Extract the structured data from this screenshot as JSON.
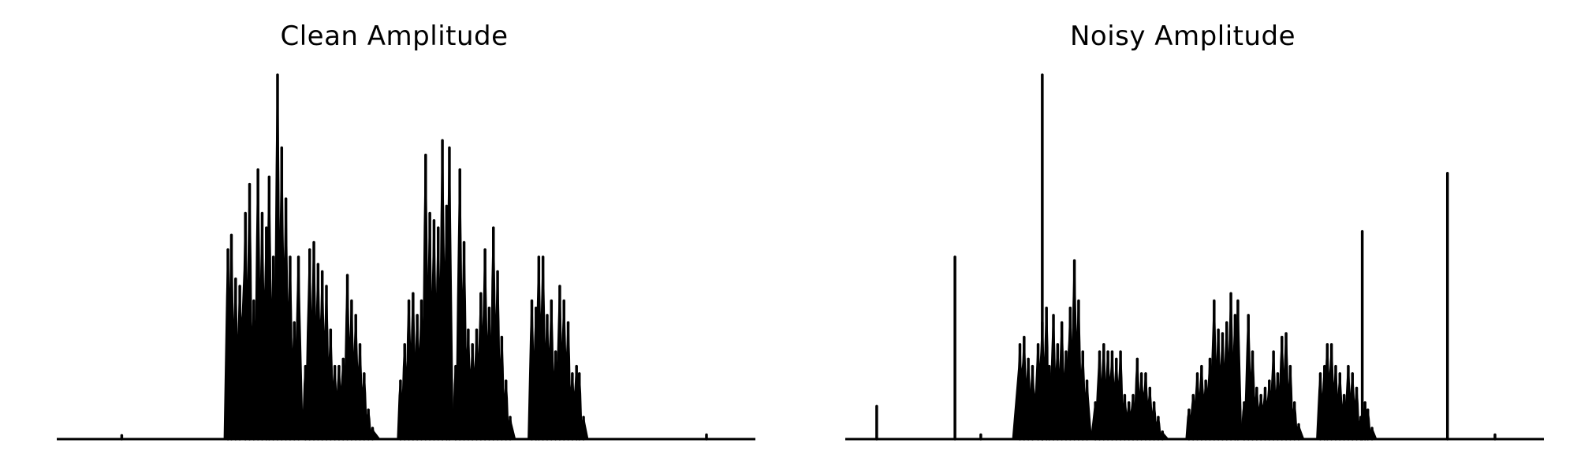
{
  "chart_data": [
    {
      "type": "area",
      "title": "Clean Amplitude",
      "xlabel": "",
      "ylabel": "",
      "xlim": [
        0,
        1
      ],
      "ylim": [
        0,
        1
      ],
      "axes_visible": false,
      "grid": false,
      "color": "#000000",
      "segments": [
        {
          "x_start": 0.24,
          "x_end": 0.352,
          "peaks": [
            [
              0.245,
              0.52
            ],
            [
              0.25,
              0.56
            ],
            [
              0.256,
              0.44
            ],
            [
              0.262,
              0.42
            ],
            [
              0.27,
              0.62
            ],
            [
              0.276,
              0.7
            ],
            [
              0.282,
              0.38
            ],
            [
              0.288,
              0.74
            ],
            [
              0.294,
              0.62
            ],
            [
              0.3,
              0.58
            ],
            [
              0.304,
              0.72
            ],
            [
              0.31,
              0.5
            ],
            [
              0.316,
              1.0
            ],
            [
              0.322,
              0.8
            ],
            [
              0.328,
              0.66
            ],
            [
              0.334,
              0.5
            ],
            [
              0.34,
              0.32
            ],
            [
              0.346,
              0.5
            ]
          ]
        },
        {
          "x_start": 0.352,
          "x_end": 0.462,
          "peaks": [
            [
              0.356,
              0.2
            ],
            [
              0.362,
              0.52
            ],
            [
              0.368,
              0.54
            ],
            [
              0.374,
              0.48
            ],
            [
              0.38,
              0.46
            ],
            [
              0.386,
              0.42
            ],
            [
              0.392,
              0.3
            ],
            [
              0.398,
              0.2
            ],
            [
              0.404,
              0.2
            ],
            [
              0.41,
              0.22
            ],
            [
              0.416,
              0.45
            ],
            [
              0.422,
              0.38
            ],
            [
              0.428,
              0.34
            ],
            [
              0.434,
              0.26
            ],
            [
              0.44,
              0.18
            ],
            [
              0.446,
              0.08
            ],
            [
              0.452,
              0.03
            ]
          ]
        },
        {
          "x_start": 0.488,
          "x_end": 0.567,
          "peaks": [
            [
              0.492,
              0.16
            ],
            [
              0.498,
              0.26
            ],
            [
              0.504,
              0.38
            ],
            [
              0.51,
              0.4
            ],
            [
              0.516,
              0.34
            ],
            [
              0.522,
              0.38
            ],
            [
              0.528,
              0.78
            ],
            [
              0.534,
              0.62
            ],
            [
              0.54,
              0.6
            ],
            [
              0.546,
              0.58
            ],
            [
              0.552,
              0.82
            ],
            [
              0.558,
              0.64
            ],
            [
              0.562,
              0.8
            ]
          ]
        },
        {
          "x_start": 0.567,
          "x_end": 0.656,
          "peaks": [
            [
              0.571,
              0.2
            ],
            [
              0.577,
              0.74
            ],
            [
              0.583,
              0.54
            ],
            [
              0.589,
              0.3
            ],
            [
              0.595,
              0.26
            ],
            [
              0.601,
              0.3
            ],
            [
              0.607,
              0.4
            ],
            [
              0.613,
              0.52
            ],
            [
              0.619,
              0.36
            ],
            [
              0.625,
              0.58
            ],
            [
              0.631,
              0.46
            ],
            [
              0.637,
              0.28
            ],
            [
              0.643,
              0.16
            ],
            [
              0.649,
              0.06
            ]
          ]
        },
        {
          "x_start": 0.675,
          "x_end": 0.76,
          "peaks": [
            [
              0.68,
              0.38
            ],
            [
              0.686,
              0.36
            ],
            [
              0.69,
              0.5
            ],
            [
              0.696,
              0.5
            ],
            [
              0.702,
              0.34
            ],
            [
              0.708,
              0.38
            ],
            [
              0.714,
              0.24
            ],
            [
              0.72,
              0.42
            ],
            [
              0.726,
              0.38
            ],
            [
              0.732,
              0.32
            ],
            [
              0.738,
              0.18
            ],
            [
              0.744,
              0.2
            ],
            [
              0.748,
              0.18
            ],
            [
              0.754,
              0.06
            ]
          ]
        }
      ],
      "spikes": [
        [
          0.093,
          0.01
        ],
        [
          0.93,
          0.012
        ]
      ]
    },
    {
      "type": "area",
      "title": "Noisy Amplitude",
      "xlabel": "",
      "ylabel": "",
      "xlim": [
        0,
        1
      ],
      "ylim": [
        0,
        1
      ],
      "axes_visible": false,
      "grid": false,
      "color": "#000000",
      "segments": [
        {
          "x_start": 0.24,
          "x_end": 0.352,
          "peaks": [
            [
              0.25,
              0.26
            ],
            [
              0.256,
              0.28
            ],
            [
              0.262,
              0.22
            ],
            [
              0.268,
              0.2
            ],
            [
              0.276,
              0.26
            ],
            [
              0.282,
              0.32
            ],
            [
              0.288,
              0.36
            ],
            [
              0.292,
              0.2
            ],
            [
              0.298,
              0.34
            ],
            [
              0.304,
              0.26
            ],
            [
              0.31,
              0.32
            ],
            [
              0.316,
              0.24
            ],
            [
              0.322,
              0.36
            ],
            [
              0.328,
              0.49
            ],
            [
              0.334,
              0.38
            ],
            [
              0.34,
              0.24
            ],
            [
              0.346,
              0.16
            ]
          ]
        },
        {
          "x_start": 0.352,
          "x_end": 0.462,
          "peaks": [
            [
              0.358,
              0.1
            ],
            [
              0.364,
              0.24
            ],
            [
              0.37,
              0.26
            ],
            [
              0.376,
              0.24
            ],
            [
              0.382,
              0.24
            ],
            [
              0.388,
              0.22
            ],
            [
              0.394,
              0.24
            ],
            [
              0.4,
              0.12
            ],
            [
              0.406,
              0.1
            ],
            [
              0.412,
              0.12
            ],
            [
              0.418,
              0.22
            ],
            [
              0.424,
              0.18
            ],
            [
              0.43,
              0.18
            ],
            [
              0.436,
              0.14
            ],
            [
              0.442,
              0.1
            ],
            [
              0.448,
              0.06
            ],
            [
              0.454,
              0.02
            ]
          ]
        },
        {
          "x_start": 0.488,
          "x_end": 0.567,
          "peaks": [
            [
              0.492,
              0.08
            ],
            [
              0.498,
              0.12
            ],
            [
              0.504,
              0.18
            ],
            [
              0.51,
              0.2
            ],
            [
              0.516,
              0.16
            ],
            [
              0.522,
              0.22
            ],
            [
              0.528,
              0.38
            ],
            [
              0.534,
              0.3
            ],
            [
              0.54,
              0.29
            ],
            [
              0.546,
              0.32
            ],
            [
              0.552,
              0.4
            ],
            [
              0.558,
              0.34
            ],
            [
              0.562,
              0.38
            ]
          ]
        },
        {
          "x_start": 0.567,
          "x_end": 0.656,
          "peaks": [
            [
              0.571,
              0.1
            ],
            [
              0.577,
              0.34
            ],
            [
              0.583,
              0.24
            ],
            [
              0.589,
              0.14
            ],
            [
              0.595,
              0.12
            ],
            [
              0.601,
              0.14
            ],
            [
              0.607,
              0.16
            ],
            [
              0.613,
              0.24
            ],
            [
              0.619,
              0.18
            ],
            [
              0.625,
              0.28
            ],
            [
              0.631,
              0.29
            ],
            [
              0.637,
              0.2
            ],
            [
              0.643,
              0.1
            ],
            [
              0.649,
              0.04
            ]
          ]
        },
        {
          "x_start": 0.675,
          "x_end": 0.76,
          "peaks": [
            [
              0.68,
              0.18
            ],
            [
              0.686,
              0.2
            ],
            [
              0.69,
              0.26
            ],
            [
              0.696,
              0.26
            ],
            [
              0.702,
              0.2
            ],
            [
              0.708,
              0.18
            ],
            [
              0.714,
              0.12
            ],
            [
              0.72,
              0.2
            ],
            [
              0.726,
              0.18
            ],
            [
              0.732,
              0.14
            ],
            [
              0.738,
              0.06
            ],
            [
              0.744,
              0.1
            ],
            [
              0.748,
              0.08
            ],
            [
              0.754,
              0.03
            ]
          ]
        }
      ],
      "spikes": [
        [
          0.045,
          0.09
        ],
        [
          0.157,
          0.5
        ],
        [
          0.194,
          0.012
        ],
        [
          0.282,
          1.0
        ],
        [
          0.74,
          0.57
        ],
        [
          0.862,
          0.73
        ],
        [
          0.93,
          0.012
        ]
      ]
    }
  ]
}
